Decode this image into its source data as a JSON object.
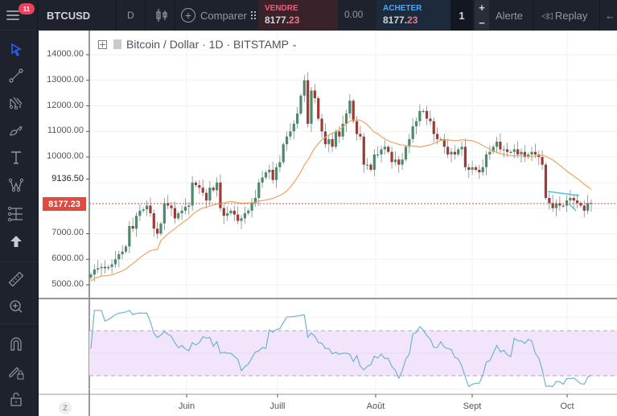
{
  "topbar": {
    "notification_count": "11",
    "symbol": "BTCUSD",
    "interval": "D",
    "compare_label": "Comparer",
    "sell": {
      "label": "VENDRE",
      "price_main": "8177.",
      "price_frac": "23"
    },
    "spread": "0.00",
    "buy": {
      "label": "ACHETER",
      "price_main": "8177.",
      "price_frac": "23"
    },
    "quantity": "1",
    "alert_label": "Alerte",
    "replay_label": "Replay"
  },
  "sidebar": {
    "tools": [
      "cursor-icon",
      "trend-line-icon",
      "pitchfork-icon",
      "brush-icon",
      "text-icon",
      "pattern-icon",
      "prediction-icon",
      "arrow-up-icon",
      "ruler-icon",
      "zoom-in-icon",
      "magnet-icon",
      "lock-drawing-icon",
      "unlock-icon"
    ]
  },
  "legend": {
    "title": "Bitcoin / Dollar · 1D · BITSTAMP"
  },
  "price_axis": {
    "labels": [
      "14000.00",
      "13000.00",
      "12000.00",
      "11000.00",
      "10000.00",
      "9136.50",
      "7000.00",
      "6000.00",
      "5000.00"
    ],
    "current_price": "8177.23"
  },
  "time_axis": {
    "labels": [
      "Juin",
      "Juill",
      "Août",
      "Sept",
      "Oct"
    ]
  },
  "colors": {
    "up": "#26a69a",
    "up_body": "#4c8a6a",
    "down": "#9c3b35",
    "ma": "#f0a35e",
    "rsi": "#6fb3d2",
    "rsi_band": "#f2e4fb",
    "trendline": "#4fc3dc",
    "price_tag": "#e04a3f"
  },
  "chart_data": [
    {
      "type": "candlestick",
      "title": "Bitcoin / Dollar · 1D · BITSTAMP",
      "xlabel": "",
      "ylabel": "",
      "ylim": [
        4800,
        14300
      ],
      "x_ticks": [
        "Juin",
        "Juill",
        "Août",
        "Sept",
        "Oct"
      ],
      "y_ticks": [
        5000,
        6000,
        7000,
        9136.5,
        10000,
        11000,
        12000,
        13000,
        14000
      ],
      "current_price": 8177.23,
      "close_series_approx": [
        5400,
        5600,
        5650,
        5700,
        5650,
        5700,
        5800,
        6000,
        6200,
        6300,
        6500,
        7300,
        7200,
        7700,
        7900,
        7950,
        8100,
        7800,
        7200,
        7000,
        7400,
        8200,
        8100,
        8000,
        7600,
        7800,
        7900,
        8050,
        8100,
        9000,
        8900,
        8800,
        8600,
        8300,
        8800,
        8700,
        9000,
        8000,
        7700,
        7800,
        7900,
        7750,
        7500,
        7600,
        7800,
        7900,
        8200,
        8400,
        9000,
        9200,
        9400,
        9500,
        9100,
        9600,
        9800,
        10500,
        10800,
        11000,
        11300,
        11700,
        12400,
        13000,
        11300,
        12600,
        12300,
        11500,
        11000,
        10500,
        10700,
        10400,
        11000,
        10800,
        11300,
        11700,
        12200,
        11400,
        10900,
        10800,
        9700,
        9700,
        9500,
        10100,
        10100,
        10300,
        10400,
        10200,
        9800,
        9900,
        9700,
        9900,
        10400,
        10700,
        11200,
        11400,
        11800,
        11800,
        11500,
        11400,
        10900,
        10700,
        10700,
        10400,
        10100,
        10200,
        10100,
        10300,
        10400,
        9600,
        9500,
        9600,
        9500,
        9400,
        9600,
        10100,
        10200,
        10400,
        10600,
        10300,
        10300,
        10200,
        10200,
        10300,
        10100,
        10200,
        10000,
        10100,
        10200,
        10100,
        10000,
        9700,
        8400,
        8200,
        8000,
        8200,
        8100,
        8100,
        8300,
        8400,
        8300,
        8200,
        8100,
        7900,
        8200,
        8177
      ],
      "series": [
        {
          "name": "MA (approx)",
          "color": "#f0a35e"
        },
        {
          "name": "RSI",
          "color": "#6fb3d2",
          "band": [
            30,
            70
          ]
        }
      ]
    }
  ]
}
